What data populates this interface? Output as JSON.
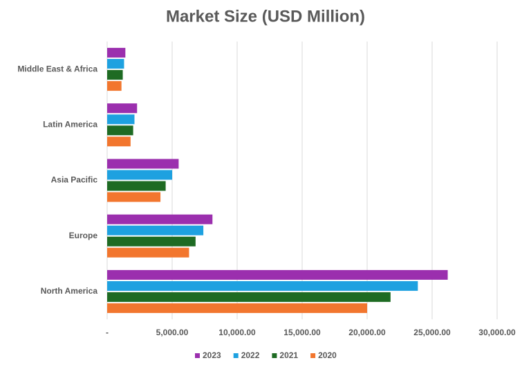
{
  "chart_data": {
    "type": "bar",
    "orientation": "horizontal",
    "title": "Market Size (USD Million)",
    "categories": [
      "North America",
      "Europe",
      "Asia Pacific",
      "Latin America",
      "Middle East & Africa"
    ],
    "series": [
      {
        "name": "2023",
        "color": "#9b2fae",
        "values": [
          26200,
          8100,
          5500,
          2300,
          1400
        ]
      },
      {
        "name": "2022",
        "color": "#1ea1e0",
        "values": [
          23900,
          7400,
          5000,
          2100,
          1300
        ]
      },
      {
        "name": "2021",
        "color": "#1e6b23",
        "values": [
          21800,
          6800,
          4500,
          2000,
          1200
        ]
      },
      {
        "name": "2020",
        "color": "#f2762e",
        "values": [
          20000,
          6300,
          4100,
          1800,
          1100
        ]
      }
    ],
    "xlim": [
      0,
      30000
    ],
    "xticks": [
      {
        "value": 0,
        "label": "-"
      },
      {
        "value": 5000,
        "label": "5,000.00"
      },
      {
        "value": 10000,
        "label": "10,000.00"
      },
      {
        "value": 15000,
        "label": "15,000.00"
      },
      {
        "value": 20000,
        "label": "20,000.00"
      },
      {
        "value": 25000,
        "label": "25,000.00"
      },
      {
        "value": 30000,
        "label": "30,000.00"
      }
    ],
    "grid": true,
    "legend": "bottom"
  }
}
